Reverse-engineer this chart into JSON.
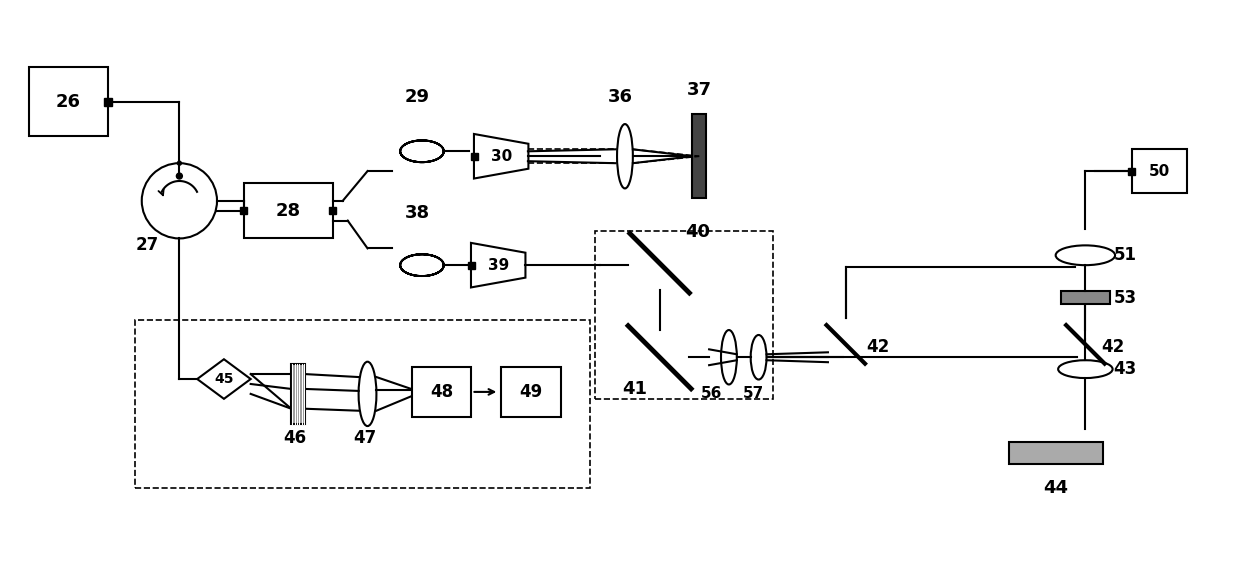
{
  "fig_width": 12.4,
  "fig_height": 5.64,
  "bg_color": "#ffffff",
  "lc": "#000000"
}
